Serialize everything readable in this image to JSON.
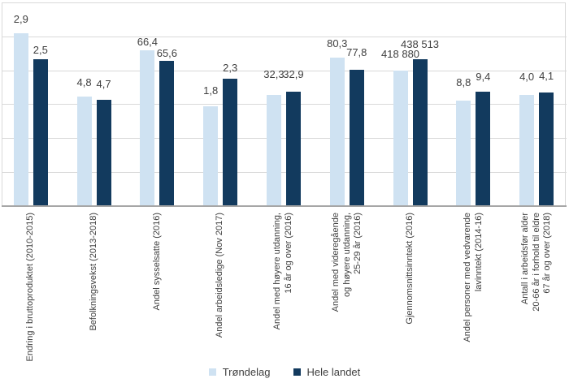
{
  "chart_data": {
    "type": "bar",
    "title": "",
    "xlabel": "",
    "ylabel": "",
    "grid": true,
    "y_axis_tick_labels_visible": false,
    "legend_position": "bottom",
    "categories": [
      {
        "label": "Endring i bruttoproduktet (2010-2015)",
        "lines": [
          "Endring i bruttoproduktet (2010-2015)"
        ]
      },
      {
        "label": "Befolkningsvekst (2013-2018)",
        "lines": [
          "Befolkningsvekst (2013-2018)"
        ]
      },
      {
        "label": "Andel sysselsatte (2016)",
        "lines": [
          "Andel sysselsatte (2016)"
        ]
      },
      {
        "label": "Andel arbeidsledige (Nov 2017)",
        "lines": [
          "Andel arbeidsledige (Nov 2017)"
        ]
      },
      {
        "label": "Andel med høyere utdanning, 16 år og over (2016)",
        "lines": [
          "Andel med høyere utdanning,",
          "16 år og over (2016)"
        ]
      },
      {
        "label": "Andel med videregående og høyere utdanning, 25-29 år (2016)",
        "lines": [
          "Andel med videregående",
          "og høyere utdanning,",
          "25-29 år (2016)"
        ]
      },
      {
        "label": "Gjennomsnittsinntekt (2016)",
        "lines": [
          "Gjennomsnittsinntekt (2016)"
        ]
      },
      {
        "label": "Andel personer med vedvarende lavinntekt (2014-16)",
        "lines": [
          "Andel personer med vedvarende",
          "lavinntekt (2014-16)"
        ]
      },
      {
        "label": "Antall i arbeidsfør alder 20-66 år i forhold til eldre 67 år og over (2018)",
        "lines": [
          "Antall i arbeidsfør alder",
          "20-66 år i forhold til eldre",
          "67 år og over (2018)"
        ]
      }
    ],
    "series": [
      {
        "name": "Trøndelag",
        "color": "#cfe2f2",
        "values": [
          2.9,
          4.8,
          66.4,
          1.8,
          32.3,
          80.3,
          418880,
          8.8,
          4.0
        ],
        "labels": [
          "2,9",
          "4,8",
          "66,4",
          "1,8",
          "32,3",
          "80,3",
          "418 880",
          "8,8",
          "4,0"
        ],
        "display_heights_pct": [
          84.9,
          53.7,
          76.4,
          49.1,
          54.7,
          72.9,
          66.7,
          51.7,
          54.7
        ]
      },
      {
        "name": "Hele landet",
        "color": "#123a5e",
        "values": [
          2.5,
          4.7,
          65.6,
          2.3,
          32.9,
          77.8,
          438513,
          9.4,
          4.1
        ],
        "labels": [
          "2,5",
          "4,7",
          "65,6",
          "2,3",
          "32,9",
          "77,8",
          "438 513",
          "9,4",
          "4,1"
        ],
        "display_heights_pct": [
          72.0,
          52.3,
          71.3,
          62.7,
          56.1,
          67.1,
          72.0,
          56.1,
          55.9
        ]
      }
    ]
  },
  "legend": {
    "items": [
      {
        "label": "Trøndelag",
        "color": "#cfe2f2"
      },
      {
        "label": "Hele landet",
        "color": "#123a5e"
      }
    ]
  }
}
